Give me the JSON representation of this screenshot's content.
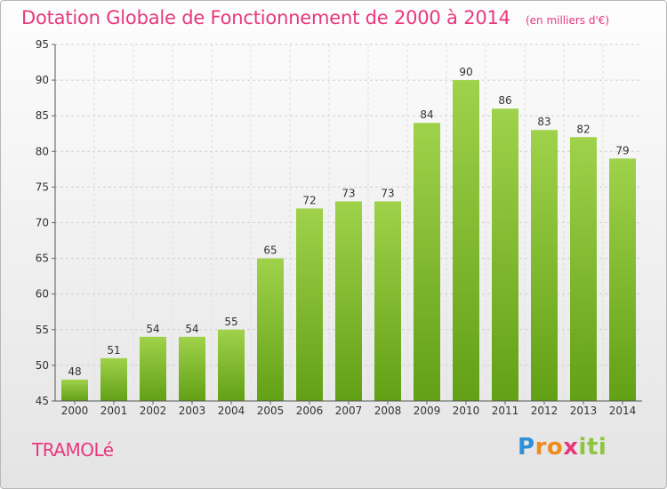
{
  "title": "Dotation Globale de Fonctionnement de 2000 à 2014",
  "unit_note": "(en milliers d'€)",
  "commune": "TRAMOLé",
  "logo": {
    "text": "Proxiti"
  },
  "colors": {
    "title": "#e8387c",
    "bar_light": "#9fd24a",
    "bar_dark": "#62a015",
    "logo_p": "#2f8fd8",
    "logo_x": "#f08a1c",
    "logo_iti": "#8cc63f"
  },
  "chart_data": {
    "type": "bar",
    "categories": [
      "2000",
      "2001",
      "2002",
      "2003",
      "2004",
      "2005",
      "2006",
      "2007",
      "2008",
      "2009",
      "2010",
      "2011",
      "2012",
      "2013",
      "2014"
    ],
    "values": [
      48,
      51,
      54,
      54,
      55,
      65,
      72,
      73,
      73,
      84,
      90,
      86,
      83,
      82,
      79
    ],
    "ylim": [
      45,
      95
    ],
    "yticks": [
      45,
      50,
      55,
      60,
      65,
      70,
      75,
      80,
      85,
      90,
      95
    ],
    "grid": true,
    "data_labels": true
  }
}
